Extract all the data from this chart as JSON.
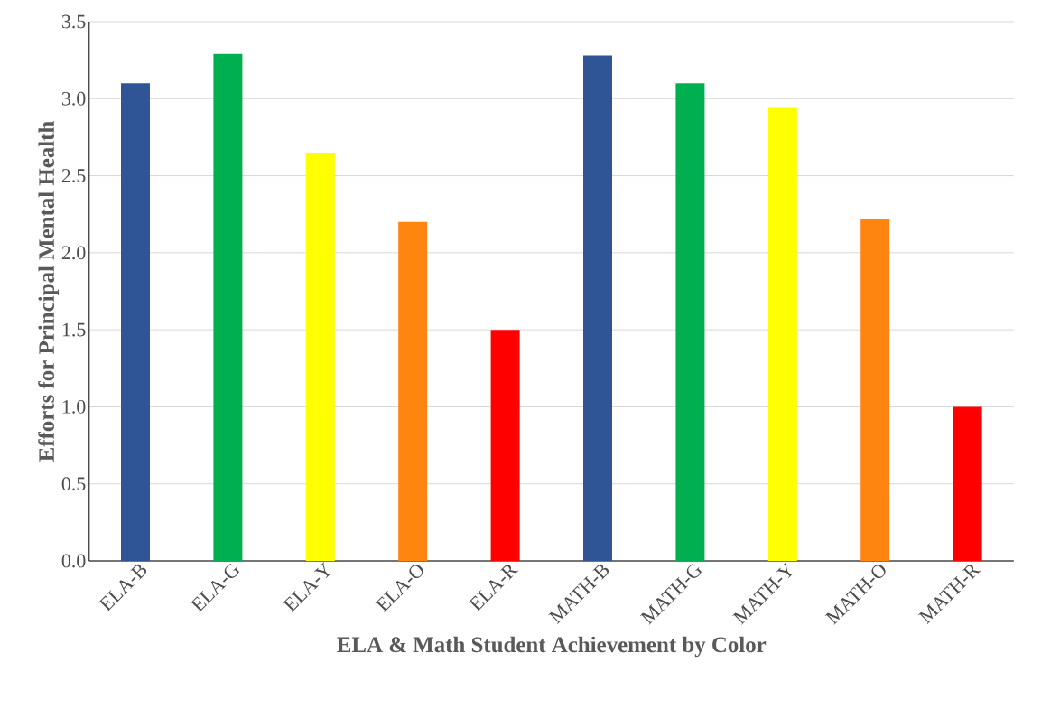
{
  "chart_data": {
    "type": "bar",
    "xlabel": "ELA & Math Student Achievement by Color",
    "ylabel": "Efforts for Principal Mental Health",
    "categories": [
      "ELA-B",
      "ELA-G",
      "ELA-Y",
      "ELA-O",
      "ELA-R",
      "MATH-B",
      "MATH-G",
      "MATH-Y",
      "MATH-O",
      "MATH-R"
    ],
    "values": [
      3.1,
      3.29,
      2.65,
      2.2,
      1.5,
      3.28,
      3.1,
      2.94,
      2.22,
      1.0
    ],
    "colors": [
      "#2f5597",
      "#00b050",
      "#ffff00",
      "#ff8511",
      "#ff0000",
      "#2f5597",
      "#00b050",
      "#ffff00",
      "#ff8511",
      "#ff0000"
    ],
    "ylim": [
      0,
      3.5
    ],
    "yticks": [
      {
        "value": 0,
        "label": "0.0"
      },
      {
        "value": 0.5,
        "label": "0.5"
      },
      {
        "value": 1,
        "label": "1.0"
      },
      {
        "value": 1.5,
        "label": "1.5"
      },
      {
        "value": 2,
        "label": "2.0"
      },
      {
        "value": 2.5,
        "label": "2.5"
      },
      {
        "value": 3,
        "label": "3.0"
      },
      {
        "value": 3.5,
        "label": "3.5"
      }
    ],
    "grid": "y"
  }
}
